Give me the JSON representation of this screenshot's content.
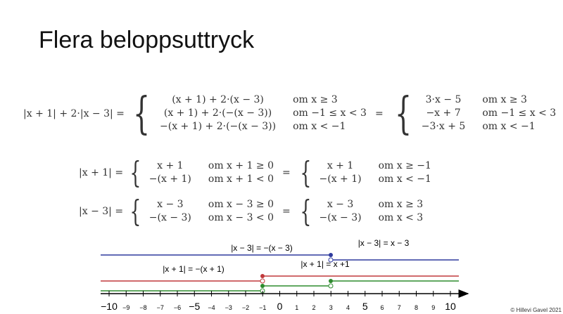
{
  "title": "Flera beloppsuttryck",
  "equations": [
    {
      "lhs": "|x + 1| + 2·|x − 3| =",
      "cases": [
        [
          "(x + 1) + 2·(x − 3)",
          "om x ≥ 3"
        ],
        [
          "(x + 1) + 2·(−(x − 3))",
          "om −1 ≤ x < 3"
        ],
        [
          "−(x + 1) + 2·(−(x − 3))",
          "om x < −1"
        ]
      ],
      "middle": "=",
      "result": [
        [
          "3·x − 5",
          "om x ≥ 3"
        ],
        [
          "−x + 7",
          "om −1 ≤ x < 3"
        ],
        [
          "−3·x + 5",
          "om x < −1"
        ]
      ]
    },
    {
      "lhs": "|x + 1| =",
      "cases": [
        [
          "x + 1",
          "om x + 1 ≥ 0"
        ],
        [
          "−(x + 1)",
          "om x + 1 < 0"
        ]
      ],
      "middle": "=",
      "result": [
        [
          "x + 1",
          "om x ≥ −1"
        ],
        [
          "−(x + 1)",
          "om x < −1"
        ]
      ]
    },
    {
      "lhs": "|x − 3| =",
      "cases": [
        [
          "x − 3",
          "om x − 3 ≥ 0"
        ],
        [
          "−(x − 3)",
          "om x − 3 < 0"
        ]
      ],
      "middle": "=",
      "result": [
        [
          "x − 3",
          "om x ≥ 3"
        ],
        [
          "−(x − 3)",
          "om x < 3"
        ]
      ]
    }
  ],
  "number_line": {
    "labels": [
      "−10",
      "−9",
      "−8",
      "−7",
      "−6",
      "−5",
      "−4",
      "−3",
      "−2",
      "−1",
      "0",
      "1",
      "2",
      "3",
      "4",
      "5",
      "6",
      "7",
      "8",
      "9",
      "10"
    ],
    "segment_labels": [
      "|x − 3| = −(x − 3)",
      "|x − 3| = x − 3",
      "|x + 1| = −(x + 1)",
      "|x + 1| = x +1"
    ]
  },
  "credit": "© Hillevi Gavel 2021"
}
